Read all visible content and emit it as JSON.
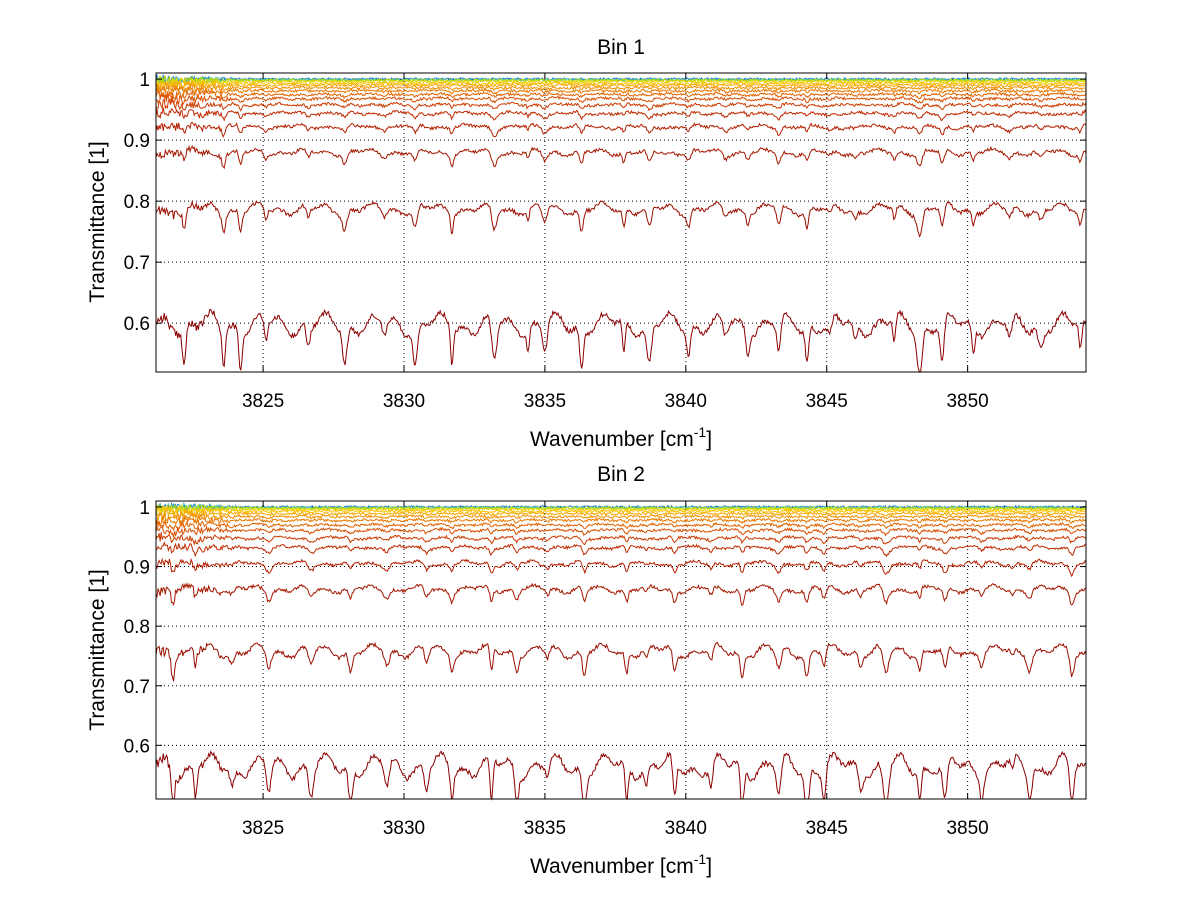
{
  "chart_data": [
    {
      "type": "line",
      "title": "Bin 1",
      "xlabel": "Wavenumber [cm",
      "xlabel_sup": "-1",
      "xlabel_close": "]",
      "ylabel": "Transmittance [1]",
      "xlim": [
        3821.2,
        3854.2
      ],
      "ylim": [
        0.52,
        1.01
      ],
      "xticks": [
        "3825",
        "3830",
        "3835",
        "3840",
        "3845",
        "3850"
      ],
      "yticks": [
        "0.6",
        "0.7",
        "0.8",
        "0.9",
        "1"
      ],
      "grid": true,
      "series_levels": [
        0.598,
        0.787,
        0.88,
        0.922,
        0.944,
        0.958,
        0.968,
        0.975,
        0.981,
        0.986,
        0.99,
        0.993,
        0.996,
        0.998,
        0.999,
        1.0
      ],
      "series_colors": [
        "#8b0000",
        "#9a0d00",
        "#a51800",
        "#b42000",
        "#c02a00",
        "#cc3a00",
        "#d84e00",
        "#e06200",
        "#e87800",
        "#ef9000",
        "#f5a800",
        "#f8c000",
        "#e6d400",
        "#b8d800",
        "#4cc4a0",
        "#1a7fd0"
      ],
      "absorption_lines": [
        3822.2,
        3823.6,
        3824.2,
        3825.1,
        3826.6,
        3827.9,
        3829.3,
        3830.4,
        3831.7,
        3833.2,
        3834.4,
        3835.0,
        3836.3,
        3837.8,
        3838.7,
        3840.1,
        3841.4,
        3842.2,
        3843.3,
        3844.3,
        3845.1,
        3846.0,
        3847.4,
        3848.3,
        3849.1,
        3850.2,
        3851.5,
        3852.6,
        3854.0
      ]
    },
    {
      "type": "line",
      "title": "Bin 2",
      "xlabel": "Wavenumber [cm",
      "xlabel_sup": "-1",
      "xlabel_close": "]",
      "ylabel": "Transmittance [1]",
      "xlim": [
        3821.2,
        3854.2
      ],
      "ylim": [
        0.51,
        1.01
      ],
      "xticks": [
        "3825",
        "3830",
        "3835",
        "3840",
        "3845",
        "3850"
      ],
      "yticks": [
        "0.6",
        "0.7",
        "0.8",
        "0.9",
        "1"
      ],
      "grid": true,
      "series_levels": [
        0.565,
        0.758,
        0.862,
        0.905,
        0.932,
        0.948,
        0.961,
        0.97,
        0.978,
        0.984,
        0.989,
        0.993,
        0.996,
        0.998,
        0.999,
        1.0
      ],
      "series_colors": [
        "#8b0000",
        "#9a0d00",
        "#a51800",
        "#b42000",
        "#c02a00",
        "#cc3a00",
        "#d84e00",
        "#e06200",
        "#e87800",
        "#ef9000",
        "#f5a800",
        "#f8c000",
        "#e6d400",
        "#b8d800",
        "#4cc4a0",
        "#1a7fd0"
      ],
      "absorption_lines": [
        3821.8,
        3822.6,
        3823.9,
        3825.2,
        3826.7,
        3828.1,
        3829.4,
        3830.8,
        3831.7,
        3833.1,
        3834.0,
        3835.1,
        3836.4,
        3837.9,
        3838.6,
        3839.6,
        3840.9,
        3842.0,
        3843.3,
        3844.3,
        3844.9,
        3846.2,
        3847.1,
        3848.3,
        3849.2,
        3850.5,
        3851.6,
        3852.2,
        3853.7
      ]
    }
  ]
}
